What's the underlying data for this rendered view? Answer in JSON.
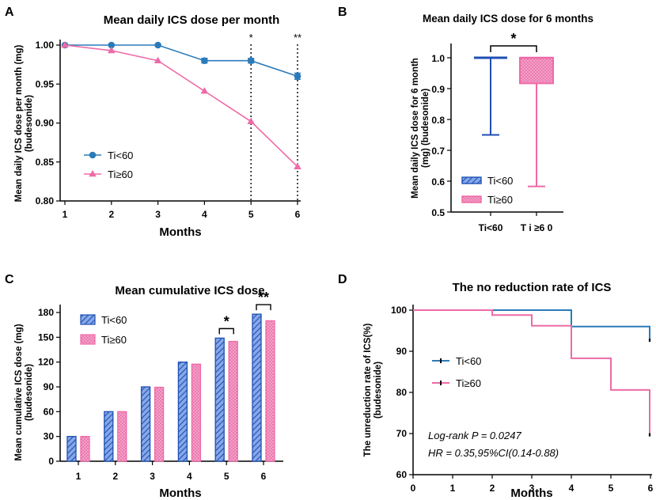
{
  "colors": {
    "blue": "#1f4fb3",
    "teal": "#2b7bb9",
    "pink": "#ee6aa6",
    "pinkFill": "#f4a0c8",
    "stripe": "#86a8e8",
    "dot": "#d8317e"
  },
  "panels": {
    "A": "A",
    "B": "B",
    "C": "C",
    "D": "D"
  },
  "chart_data": [
    {
      "panel": "A",
      "type": "line",
      "title": "Mean daily ICS dose per month",
      "xlabel": "Months",
      "ylabel_line1": "Mean daily ICS dose per month (mg)",
      "ylabel_line2": "(budesonide)",
      "x": [
        1,
        2,
        3,
        4,
        5,
        6
      ],
      "xticks": [
        "1",
        "2",
        "3",
        "4",
        "5",
        "6"
      ],
      "ylim": [
        0.8,
        1.0
      ],
      "yticks": [
        "0.80",
        "0.85",
        "0.90",
        "0.95",
        "1.00"
      ],
      "series": [
        {
          "name": "Ti<60",
          "values": [
            1.0,
            1.0,
            1.0,
            0.98,
            0.98,
            0.96
          ],
          "errors": [
            0,
            0,
            0,
            0.003,
            0.003,
            0.004
          ]
        },
        {
          "name": "Ti≥60",
          "values": [
            1.0,
            0.993,
            0.98,
            0.941,
            0.902,
            0.844
          ],
          "errors": [
            0,
            0,
            0,
            0,
            0,
            0
          ]
        }
      ],
      "significance": [
        {
          "x": 5,
          "label": "*"
        },
        {
          "x": 6,
          "label": "**"
        }
      ]
    },
    {
      "panel": "B",
      "type": "box",
      "title": "Mean daily ICS dose for 6 months",
      "ylabel_line1": "Mean daily ICS dose for 6 month",
      "ylabel_line2": "(mg) (budesonide)",
      "ylim": [
        0.5,
        1.0
      ],
      "yticks": [
        "0.5",
        "0.6",
        "0.7",
        "0.8",
        "0.9",
        "1.0"
      ],
      "categories": [
        "Ti<60",
        "T i ≥6 0"
      ],
      "legend": [
        "Ti<60",
        "Ti≥60"
      ],
      "boxes": [
        {
          "name": "Ti<60",
          "min": 0.75,
          "q1": 1.0,
          "median": 1.0,
          "q3": 1.0,
          "max": 1.0
        },
        {
          "name": "Ti≥60",
          "min": 0.583,
          "q1": 0.917,
          "median": 1.0,
          "q3": 1.0,
          "max": 1.0
        }
      ],
      "significance": "*"
    },
    {
      "panel": "C",
      "type": "bar",
      "title": "Mean cumulative ICS dose",
      "xlabel": "Months",
      "ylabel_line1": "Mean cumulative ICS dose (mg)",
      "ylabel_line2": "(budesonide)",
      "categories": [
        "1",
        "2",
        "3",
        "4",
        "5",
        "6"
      ],
      "ylim": [
        0,
        180
      ],
      "yticks": [
        "0",
        "30",
        "60",
        "90",
        "120",
        "150",
        "180"
      ],
      "series": [
        {
          "name": "Ti<60",
          "values": [
            30,
            60,
            90,
            120,
            149,
            178
          ]
        },
        {
          "name": "Ti≥60",
          "values": [
            30,
            60,
            89.5,
            117.5,
            145,
            170
          ]
        }
      ],
      "significance": [
        {
          "category": "5",
          "label": "*"
        },
        {
          "category": "6",
          "label": "**"
        }
      ]
    },
    {
      "panel": "D",
      "type": "line",
      "subtype": "kaplan-meier",
      "title": "The no reduction rate of ICS",
      "xlabel": "Months",
      "ylabel_line1": "The unreduction rate of ICS(%)",
      "ylabel_line2": "(budesonide)",
      "xlim": [
        0,
        6
      ],
      "xticks": [
        "0",
        "1",
        "2",
        "3",
        "4",
        "5",
        "6"
      ],
      "ylim": [
        60,
        100
      ],
      "yticks": [
        "60",
        "70",
        "80",
        "90",
        "100"
      ],
      "series": [
        {
          "name": "Ti<60",
          "steps": [
            [
              0,
              100
            ],
            [
              4,
              100
            ],
            [
              4,
              96
            ],
            [
              6,
              96
            ],
            [
              6,
              92.5
            ]
          ]
        },
        {
          "name": "Ti≥60",
          "steps": [
            [
              0,
              100
            ],
            [
              2,
              100
            ],
            [
              2,
              98.8
            ],
            [
              3,
              98.8
            ],
            [
              3,
              96.2
            ],
            [
              4,
              96.2
            ],
            [
              4,
              88.3
            ],
            [
              5,
              88.3
            ],
            [
              5,
              80.6
            ],
            [
              6,
              80.6
            ],
            [
              6,
              69.5
            ]
          ]
        }
      ],
      "annotations": [
        "Log-rank P = 0.0247",
        "HR = 0.35,95%CI(0.14-0.88)"
      ]
    }
  ]
}
